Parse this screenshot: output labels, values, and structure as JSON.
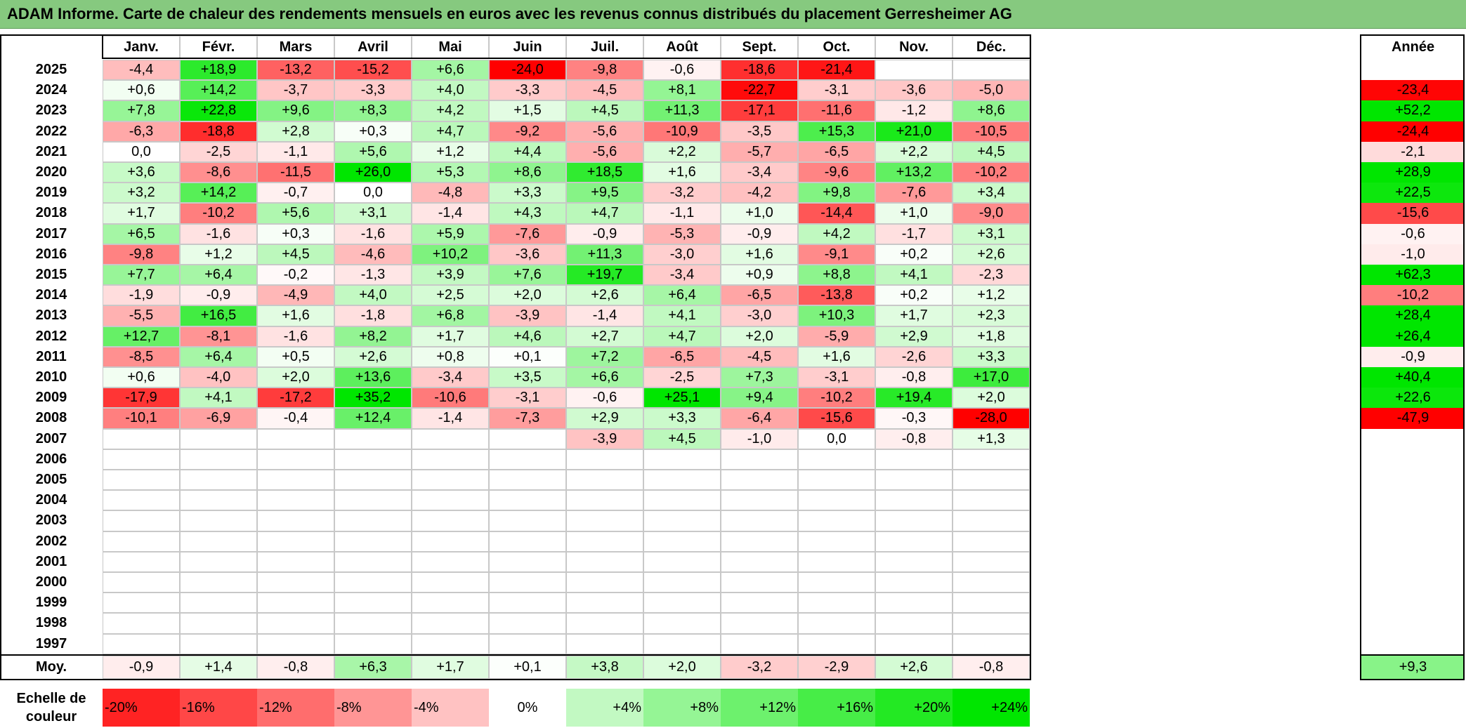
{
  "title": "ADAM Informe. Carte de chaleur des rendements mensuels en euros avec les revenus connus distribués du placement Gerresheimer AG",
  "chart_data": {
    "type": "heatmap",
    "title": "ADAM Informe. Carte de chaleur des rendements mensuels en euros avec les revenus connus distribués du placement Gerresheimer AG",
    "months": [
      "Janv.",
      "Févr.",
      "Mars",
      "Avril",
      "Mai",
      "Juin",
      "Juil.",
      "Août",
      "Sept.",
      "Oct.",
      "Nov.",
      "Déc."
    ],
    "year_header": "Année",
    "rows": [
      {
        "year": "2025",
        "values": [
          "-4,4",
          "+18,9",
          "-13,2",
          "-15,2",
          "+6,6",
          "-24,0",
          "-9,8",
          "-0,6",
          "-18,6",
          "-21,4",
          "",
          ""
        ],
        "annual": ""
      },
      {
        "year": "2024",
        "values": [
          "+0,6",
          "+14,2",
          "-3,7",
          "-3,3",
          "+4,0",
          "-3,3",
          "-4,5",
          "+8,1",
          "-22,7",
          "-3,1",
          "-3,6",
          "-5,0"
        ],
        "annual": "-23,4"
      },
      {
        "year": "2023",
        "values": [
          "+7,8",
          "+22,8",
          "+9,6",
          "+8,3",
          "+4,2",
          "+1,5",
          "+4,5",
          "+11,3",
          "-17,1",
          "-11,6",
          "-1,2",
          "+8,6"
        ],
        "annual": "+52,2"
      },
      {
        "year": "2022",
        "values": [
          "-6,3",
          "-18,8",
          "+2,8",
          "+0,3",
          "+4,7",
          "-9,2",
          "-5,6",
          "-10,9",
          "-3,5",
          "+15,3",
          "+21,0",
          "-10,5"
        ],
        "annual": "-24,4"
      },
      {
        "year": "2021",
        "values": [
          "0,0",
          "-2,5",
          "-1,1",
          "+5,6",
          "+1,2",
          "+4,4",
          "-5,6",
          "+2,2",
          "-5,7",
          "-6,5",
          "+2,2",
          "+4,5"
        ],
        "annual": "-2,1"
      },
      {
        "year": "2020",
        "values": [
          "+3,6",
          "-8,6",
          "-11,5",
          "+26,0",
          "+5,3",
          "+8,6",
          "+18,5",
          "+1,6",
          "-3,4",
          "-9,6",
          "+13,2",
          "-10,2"
        ],
        "annual": "+28,9"
      },
      {
        "year": "2019",
        "values": [
          "+3,2",
          "+14,2",
          "-0,7",
          "0,0",
          "-4,8",
          "+3,3",
          "+9,5",
          "-3,2",
          "-4,2",
          "+9,8",
          "-7,6",
          "+3,4"
        ],
        "annual": "+22,5"
      },
      {
        "year": "2018",
        "values": [
          "+1,7",
          "-10,2",
          "+5,6",
          "+3,1",
          "-1,4",
          "+4,3",
          "+4,7",
          "-1,1",
          "+1,0",
          "-14,4",
          "+1,0",
          "-9,0"
        ],
        "annual": "-15,6"
      },
      {
        "year": "2017",
        "values": [
          "+6,5",
          "-1,6",
          "+0,3",
          "-1,6",
          "+5,9",
          "-7,6",
          "-0,9",
          "-5,3",
          "-0,9",
          "+4,2",
          "-1,7",
          "+3,1"
        ],
        "annual": "-0,6"
      },
      {
        "year": "2016",
        "values": [
          "-9,8",
          "+1,2",
          "+4,5",
          "-4,6",
          "+10,2",
          "-3,6",
          "+11,3",
          "-3,0",
          "+1,6",
          "-9,1",
          "+0,2",
          "+2,6"
        ],
        "annual": "-1,0"
      },
      {
        "year": "2015",
        "values": [
          "+7,7",
          "+6,4",
          "-0,2",
          "-1,3",
          "+3,9",
          "+7,6",
          "+19,7",
          "-3,4",
          "+0,9",
          "+8,8",
          "+4,1",
          "-2,3"
        ],
        "annual": "+62,3"
      },
      {
        "year": "2014",
        "values": [
          "-1,9",
          "-0,9",
          "-4,9",
          "+4,0",
          "+2,5",
          "+2,0",
          "+2,6",
          "+6,4",
          "-6,5",
          "-13,8",
          "+0,2",
          "+1,2"
        ],
        "annual": "-10,2"
      },
      {
        "year": "2013",
        "values": [
          "-5,5",
          "+16,5",
          "+1,6",
          "-1,8",
          "+6,8",
          "-3,9",
          "-1,4",
          "+4,1",
          "-3,0",
          "+10,3",
          "+1,7",
          "+2,3"
        ],
        "annual": "+28,4"
      },
      {
        "year": "2012",
        "values": [
          "+12,7",
          "-8,1",
          "-1,6",
          "+8,2",
          "+1,7",
          "+4,6",
          "+2,7",
          "+4,7",
          "+2,0",
          "-5,9",
          "+2,9",
          "+1,8"
        ],
        "annual": "+26,4"
      },
      {
        "year": "2011",
        "values": [
          "-8,5",
          "+6,4",
          "+0,5",
          "+2,6",
          "+0,8",
          "+0,1",
          "+7,2",
          "-6,5",
          "-4,5",
          "+1,6",
          "-2,6",
          "+3,3"
        ],
        "annual": "-0,9"
      },
      {
        "year": "2010",
        "values": [
          "+0,6",
          "-4,0",
          "+2,0",
          "+13,6",
          "-3,4",
          "+3,5",
          "+6,6",
          "-2,5",
          "+7,3",
          "-3,1",
          "-0,8",
          "+17,0"
        ],
        "annual": "+40,4"
      },
      {
        "year": "2009",
        "values": [
          "-17,9",
          "+4,1",
          "-17,2",
          "+35,2",
          "-10,6",
          "-3,1",
          "-0,6",
          "+25,1",
          "+9,4",
          "-10,2",
          "+19,4",
          "+2,0"
        ],
        "annual": "+22,6"
      },
      {
        "year": "2008",
        "values": [
          "-10,1",
          "-6,9",
          "-0,4",
          "+12,4",
          "-1,4",
          "-7,3",
          "+2,9",
          "+3,3",
          "-6,4",
          "-15,6",
          "-0,3",
          "-28,0"
        ],
        "annual": "-47,9"
      },
      {
        "year": "2007",
        "values": [
          "",
          "",
          "",
          "",
          "",
          "",
          "-3,9",
          "+4,5",
          "-1,0",
          "0,0",
          "-0,8",
          "+1,3"
        ],
        "annual": ""
      },
      {
        "year": "2006",
        "values": [
          "",
          "",
          "",
          "",
          "",
          "",
          "",
          "",
          "",
          "",
          "",
          ""
        ],
        "annual": ""
      },
      {
        "year": "2005",
        "values": [
          "",
          "",
          "",
          "",
          "",
          "",
          "",
          "",
          "",
          "",
          "",
          ""
        ],
        "annual": ""
      },
      {
        "year": "2004",
        "values": [
          "",
          "",
          "",
          "",
          "",
          "",
          "",
          "",
          "",
          "",
          "",
          ""
        ],
        "annual": ""
      },
      {
        "year": "2003",
        "values": [
          "",
          "",
          "",
          "",
          "",
          "",
          "",
          "",
          "",
          "",
          "",
          ""
        ],
        "annual": ""
      },
      {
        "year": "2002",
        "values": [
          "",
          "",
          "",
          "",
          "",
          "",
          "",
          "",
          "",
          "",
          "",
          ""
        ],
        "annual": ""
      },
      {
        "year": "2001",
        "values": [
          "",
          "",
          "",
          "",
          "",
          "",
          "",
          "",
          "",
          "",
          "",
          ""
        ],
        "annual": ""
      },
      {
        "year": "2000",
        "values": [
          "",
          "",
          "",
          "",
          "",
          "",
          "",
          "",
          "",
          "",
          "",
          ""
        ],
        "annual": ""
      },
      {
        "year": "1999",
        "values": [
          "",
          "",
          "",
          "",
          "",
          "",
          "",
          "",
          "",
          "",
          "",
          ""
        ],
        "annual": ""
      },
      {
        "year": "1998",
        "values": [
          "",
          "",
          "",
          "",
          "",
          "",
          "",
          "",
          "",
          "",
          "",
          ""
        ],
        "annual": ""
      },
      {
        "year": "1997",
        "values": [
          "",
          "",
          "",
          "",
          "",
          "",
          "",
          "",
          "",
          "",
          "",
          ""
        ],
        "annual": ""
      }
    ],
    "average": {
      "label": "Moy.",
      "values": [
        "-0,9",
        "+1,4",
        "-0,8",
        "+6,3",
        "+1,7",
        "+0,1",
        "+3,8",
        "+2,0",
        "-3,2",
        "-2,9",
        "+2,6",
        "-0,8"
      ],
      "annual": "+9,3"
    },
    "legend": {
      "label": "Echelle de couleur",
      "steps": [
        "-20%",
        "-16%",
        "-12%",
        "-8%",
        "-4%",
        "0%",
        "+4%",
        "+8%",
        "+12%",
        "+16%",
        "+20%",
        "+24%"
      ]
    },
    "colors": {
      "negative": "#ff0000",
      "neutral": "#ffffff",
      "positive": "#00e600"
    },
    "color_scale_limit": 24
  }
}
